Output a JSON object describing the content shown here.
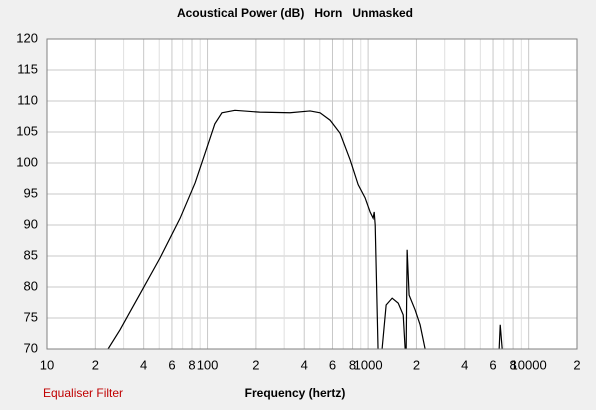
{
  "chart_data": {
    "type": "line",
    "title": "Acoustical Power (dB)   Horn   Unmasked",
    "x_label": "Frequency (hertz)",
    "button": "Equaliser Filter",
    "x": [
      24.0,
      28.5,
      38.0,
      50.6,
      67.5,
      83.7,
      96.6,
      111,
      123,
      148,
      211,
      326,
      435,
      502,
      580,
      669,
      773,
      867,
      957,
      1029,
      1075,
      1091,
      1107,
      1153,
      null,
      1222,
      1295,
      1412,
      1540,
      1654,
      1701,
      null,
      1726,
      1750,
      1800,
      1963,
      2108,
      2265,
      null,
      6550,
      6650,
      6840
    ],
    "values": [
      70,
      73.1,
      78.9,
      84.7,
      91.1,
      96.8,
      101.6,
      106.3,
      108.1,
      108.5,
      108.2,
      108.1,
      108.4,
      108.1,
      106.9,
      104.8,
      100.5,
      96.5,
      94.4,
      92.1,
      91.1,
      92.1,
      90.0,
      70,
      null,
      70,
      77.1,
      78.2,
      77.4,
      75.5,
      70,
      null,
      70,
      86.0,
      78.7,
      76.3,
      73.9,
      70,
      null,
      70,
      73.9,
      70
    ],
    "color": "#000000",
    "log_x": true,
    "grid": true,
    "xlim": [
      10,
      20000
    ],
    "ylim": [
      70,
      120
    ],
    "xticks": [
      10,
      {
        "value": 20,
        "label": "2"
      },
      {
        "value": 40,
        "label": "4"
      },
      {
        "value": 60,
        "label": "6"
      },
      {
        "value": 80,
        "label": "8"
      },
      100,
      {
        "value": 200,
        "label": "2"
      },
      {
        "value": 400,
        "label": "4"
      },
      {
        "value": 600,
        "label": "6"
      },
      {
        "value": 800,
        "label": "8"
      },
      1000,
      {
        "value": 2000,
        "label": "2"
      },
      {
        "value": 4000,
        "label": "4"
      },
      {
        "value": 6000,
        "label": "6"
      },
      {
        "value": 8000,
        "label": "8"
      },
      10000,
      {
        "value": 20000,
        "label": "2"
      }
    ],
    "xminorticks": [
      30,
      50,
      70,
      90,
      300,
      500,
      700,
      900,
      3000,
      5000,
      7000,
      9000
    ],
    "yticks": [
      70,
      75,
      80,
      85,
      90,
      95,
      100,
      105,
      110,
      115,
      120
    ]
  }
}
